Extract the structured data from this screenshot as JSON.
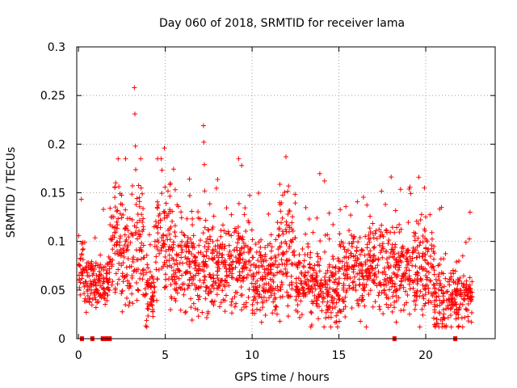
{
  "chart_data": {
    "type": "scatter",
    "title": "Day 060 of 2018, SRMTID for receiver lama",
    "xlabel": "GPS time / hours",
    "ylabel": "SRMTID / TECUs",
    "xlim": [
      -0.1,
      24
    ],
    "ylim": [
      0,
      0.3
    ],
    "x_ticks": [
      0,
      5,
      10,
      15,
      20
    ],
    "x_tick_labels": [
      "0",
      "5",
      "10",
      "15",
      "20"
    ],
    "y_ticks": [
      0,
      0.05,
      0.1,
      0.15,
      0.2,
      0.25,
      0.3
    ],
    "y_tick_labels": [
      "0",
      "0.05",
      "0.1",
      "0.15",
      "0.2",
      "0.25",
      "0.3"
    ],
    "grid": true,
    "marker": "+",
    "series_color": "#ff0000",
    "x_start": 0.0,
    "x_end": 22.7,
    "segments": [
      {
        "x0": 0.0,
        "x1": 0.3,
        "mean": 0.075,
        "spread": 0.018
      },
      {
        "x0": 0.3,
        "x1": 0.8,
        "mean": 0.06,
        "spread": 0.015
      },
      {
        "x0": 0.8,
        "x1": 1.3,
        "mean": 0.06,
        "spread": 0.013
      },
      {
        "x0": 1.3,
        "x1": 1.8,
        "mean": 0.058,
        "spread": 0.012
      },
      {
        "x0": 1.8,
        "x1": 2.5,
        "mean": 0.105,
        "spread": 0.03
      },
      {
        "x0": 2.5,
        "x1": 3.1,
        "mean": 0.08,
        "spread": 0.03
      },
      {
        "x0": 3.1,
        "x1": 3.8,
        "mean": 0.095,
        "spread": 0.03
      },
      {
        "x0": 3.8,
        "x1": 4.4,
        "mean": 0.048,
        "spread": 0.015
      },
      {
        "x0": 4.4,
        "x1": 5.3,
        "mean": 0.105,
        "spread": 0.028
      },
      {
        "x0": 5.3,
        "x1": 6.5,
        "mean": 0.075,
        "spread": 0.022
      },
      {
        "x0": 6.5,
        "x1": 8.0,
        "mean": 0.07,
        "spread": 0.024
      },
      {
        "x0": 8.0,
        "x1": 9.0,
        "mean": 0.075,
        "spread": 0.022
      },
      {
        "x0": 9.0,
        "x1": 10.0,
        "mean": 0.08,
        "spread": 0.022
      },
      {
        "x0": 10.0,
        "x1": 11.5,
        "mean": 0.06,
        "spread": 0.02
      },
      {
        "x0": 11.5,
        "x1": 12.5,
        "mean": 0.09,
        "spread": 0.028
      },
      {
        "x0": 12.5,
        "x1": 14.0,
        "mean": 0.058,
        "spread": 0.02
      },
      {
        "x0": 14.0,
        "x1": 15.5,
        "mean": 0.06,
        "spread": 0.024
      },
      {
        "x0": 15.5,
        "x1": 17.0,
        "mean": 0.07,
        "spread": 0.022
      },
      {
        "x0": 17.0,
        "x1": 18.5,
        "mean": 0.075,
        "spread": 0.022
      },
      {
        "x0": 18.5,
        "x1": 19.5,
        "mean": 0.07,
        "spread": 0.022
      },
      {
        "x0": 19.5,
        "x1": 20.5,
        "mean": 0.075,
        "spread": 0.028
      },
      {
        "x0": 20.5,
        "x1": 21.5,
        "mean": 0.038,
        "spread": 0.018
      },
      {
        "x0": 21.5,
        "x1": 22.7,
        "mean": 0.045,
        "spread": 0.016
      }
    ],
    "outliers": [
      {
        "x": 3.22,
        "y": 0.258
      },
      {
        "x": 3.25,
        "y": 0.231
      },
      {
        "x": 3.28,
        "y": 0.198
      },
      {
        "x": 7.2,
        "y": 0.219
      },
      {
        "x": 7.22,
        "y": 0.202
      },
      {
        "x": 7.25,
        "y": 0.179
      },
      {
        "x": 4.95,
        "y": 0.196
      },
      {
        "x": 11.95,
        "y": 0.187
      },
      {
        "x": 9.4,
        "y": 0.178
      },
      {
        "x": 19.6,
        "y": 0.166
      },
      {
        "x": 2.1,
        "y": 0.156
      },
      {
        "x": 12.1,
        "y": 0.157
      }
    ],
    "zero_markers": [
      0.2,
      0.8,
      1.4,
      1.6,
      1.8,
      18.2,
      21.7
    ]
  }
}
